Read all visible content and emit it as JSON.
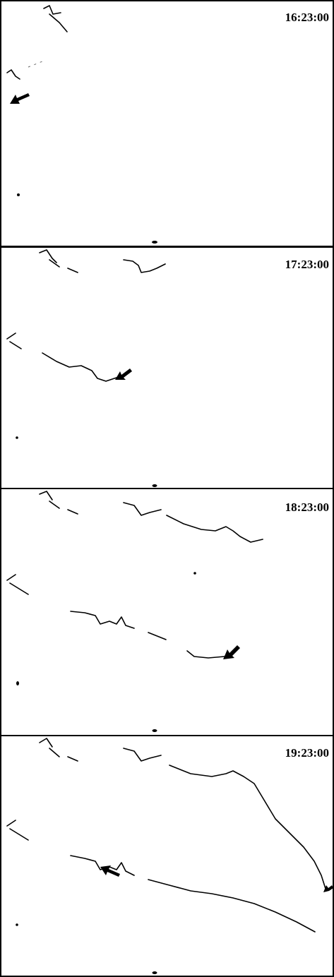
{
  "panels": [
    {
      "timestamp": "16:23:00"
    },
    {
      "timestamp": "17:23:00"
    },
    {
      "timestamp": "18:23:00"
    },
    {
      "timestamp": "19:23:00"
    }
  ]
}
